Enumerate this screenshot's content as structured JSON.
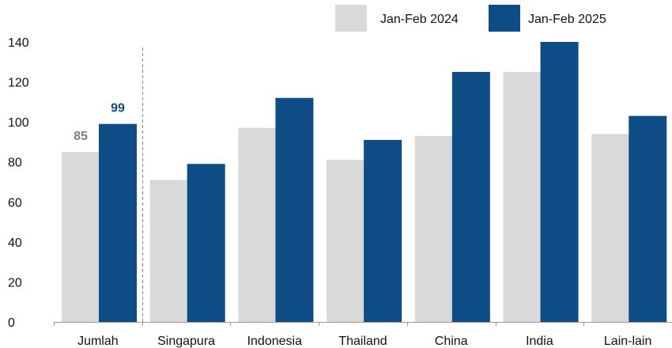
{
  "chart_data": {
    "type": "bar",
    "categories": [
      "Jumlah",
      "Singapura",
      "Indonesia",
      "Thailand",
      "China",
      "India",
      "Lain-lain"
    ],
    "series": [
      {
        "name": "Jan-Feb 2024",
        "values": [
          85,
          71,
          97,
          81,
          93,
          125,
          94
        ]
      },
      {
        "name": "Jan-Feb 2025",
        "values": [
          99,
          79,
          112,
          91,
          125,
          140,
          103
        ]
      }
    ],
    "data_labels": [
      {
        "category": "Jumlah",
        "series": "Jan-Feb 2024",
        "text": "85"
      },
      {
        "category": "Jumlah",
        "series": "Jan-Feb 2025",
        "text": "99"
      }
    ],
    "yticks": [
      "0",
      "20",
      "40",
      "60",
      "80",
      "100",
      "120",
      "140"
    ],
    "ylim": [
      0,
      140
    ],
    "title": "",
    "xlabel": "",
    "ylabel": "",
    "grid": false,
    "legend_position": "top-right",
    "separator_after": "Jumlah",
    "colors": {
      "Jan-Feb 2024": "#d9d9d9",
      "Jan-Feb 2025": "#0e4c86",
      "label_2024": "#808080",
      "label_2025": "#0e4c86",
      "axis": "#999999",
      "separator": "#7f7f7f"
    }
  }
}
